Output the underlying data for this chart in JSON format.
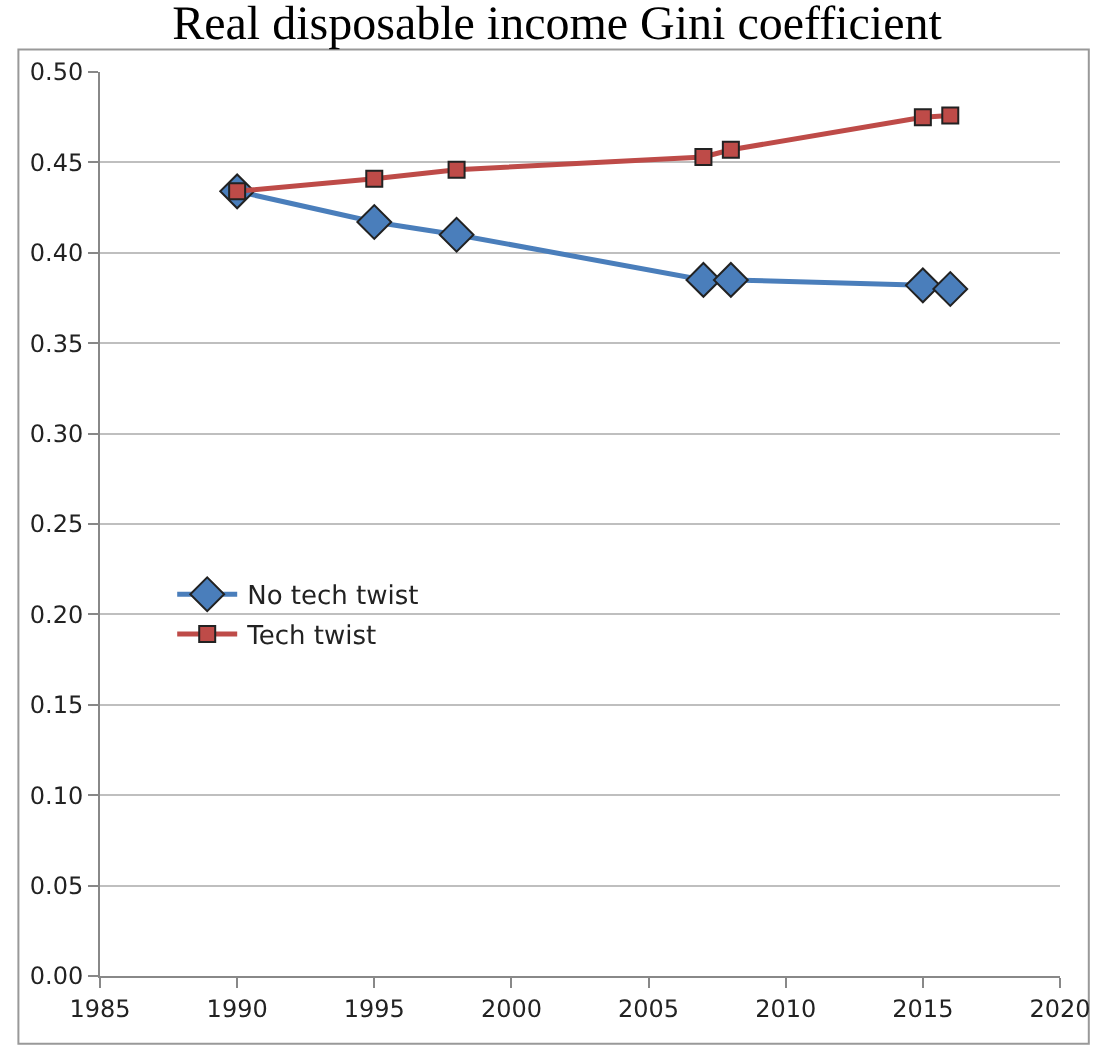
{
  "chart_data": {
    "type": "line",
    "title": "Real disposable income Gini coefficient",
    "x": [
      1990,
      1995,
      1998,
      2007,
      2008,
      2015,
      2016
    ],
    "series": [
      {
        "name": "No tech twist",
        "color": "#4a7ebb",
        "marker": "diamond",
        "values": [
          0.434,
          0.417,
          0.41,
          0.385,
          0.385,
          0.382,
          0.38
        ]
      },
      {
        "name": "Tech twist",
        "color": "#be4b48",
        "marker": "square",
        "values": [
          0.434,
          0.441,
          0.446,
          0.453,
          0.457,
          0.475,
          0.476
        ]
      }
    ],
    "xlim": [
      1985,
      2020
    ],
    "xticks": [
      1985,
      1990,
      1995,
      2000,
      2005,
      2010,
      2015,
      2020
    ],
    "ylim": [
      0,
      0.5
    ],
    "yticks": [
      {
        "value": 0,
        "label": "0.00"
      },
      {
        "value": 0.05,
        "label": "0.05"
      },
      {
        "value": 0.1,
        "label": "0.10"
      },
      {
        "value": 0.15,
        "label": "0.15"
      },
      {
        "value": 0.2,
        "label": "0.20"
      },
      {
        "value": 0.25,
        "label": "0.25"
      },
      {
        "value": 0.3,
        "label": "0.30"
      },
      {
        "value": 0.35,
        "label": "0.35"
      },
      {
        "value": 0.4,
        "label": "0.40"
      },
      {
        "value": 0.45,
        "label": "0.45"
      },
      {
        "value": 0.5,
        "label": "0.50"
      }
    ],
    "grid": "y",
    "legend": "left",
    "line_style": "solid"
  }
}
